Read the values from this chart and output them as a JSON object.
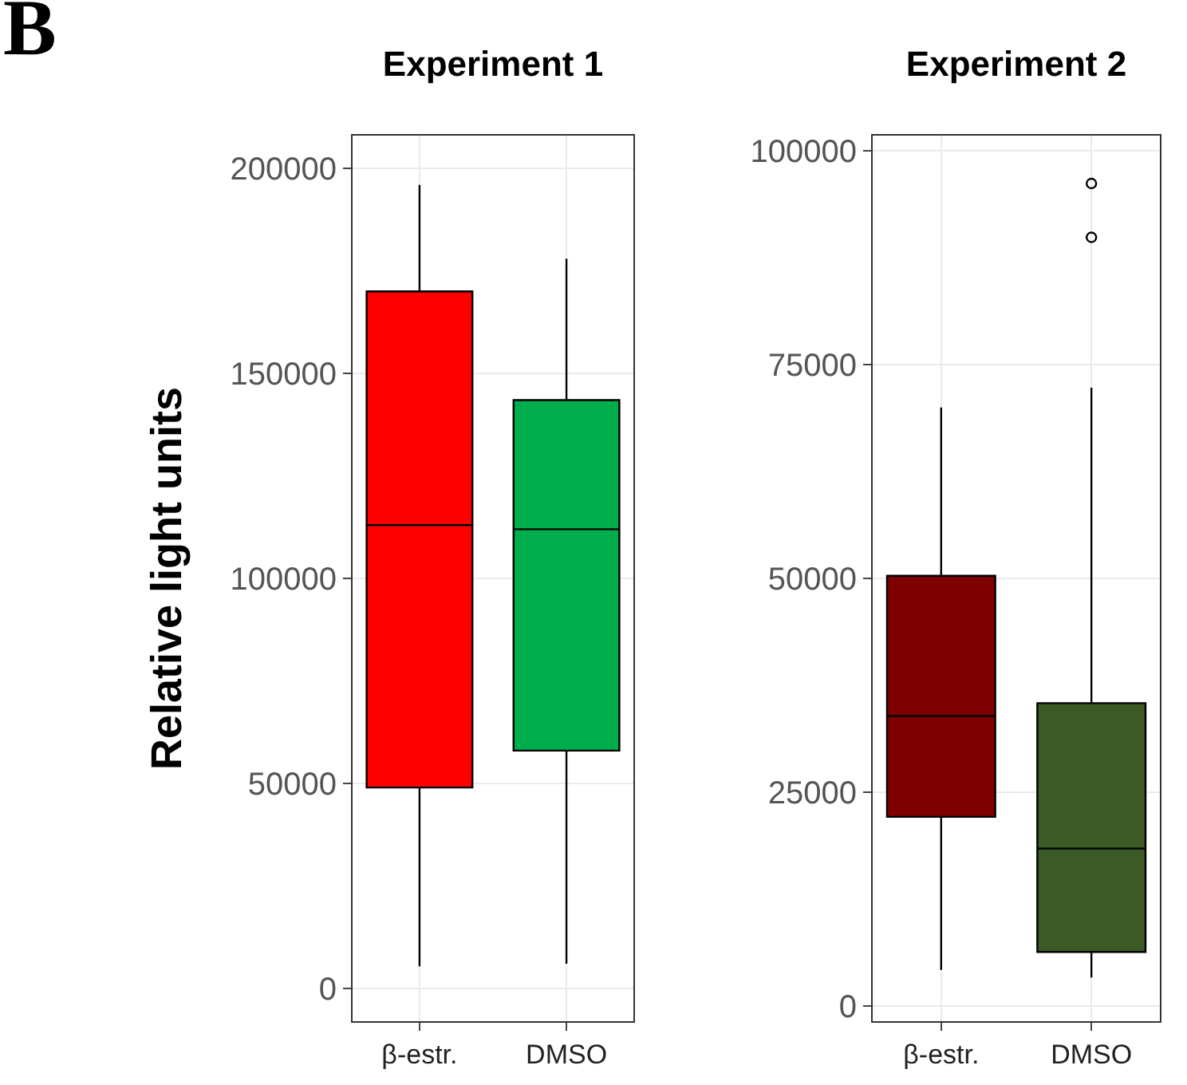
{
  "chart_data": [
    {
      "type": "box",
      "title": "Experiment 1",
      "ylabel": "Relative light units",
      "annotations": [
        "B"
      ],
      "categories": [
        "β-estr.",
        "DMSO"
      ],
      "colors": [
        "#ff0000",
        "#00ad4c"
      ],
      "boxes": [
        {
          "low": 5400,
          "q1": 49000,
          "median": 113000,
          "q3": 170000,
          "high": 196000
        },
        {
          "low": 6000,
          "q1": 58000,
          "median": 112000,
          "q3": 143500,
          "high": 178000
        }
      ],
      "ylim": [
        -8000,
        208000
      ],
      "yticks": [
        0,
        50000,
        100000,
        150000,
        200000
      ],
      "grid": true
    },
    {
      "type": "box",
      "title": "Experiment 2",
      "categories": [
        "β-estr.",
        "DMSO"
      ],
      "colors": [
        "#7f0000",
        "#3b5a25"
      ],
      "boxes": [
        {
          "low": 4200,
          "q1": 22100,
          "median": 33900,
          "q3": 50300,
          "high": 70000
        },
        {
          "low": 3300,
          "q1": 6300,
          "median": 18400,
          "q3": 35400,
          "high": 72300,
          "outliers": [
            89900,
            96200
          ]
        }
      ],
      "ylim": [
        -1800,
        101800
      ],
      "yticks": [
        0,
        25000,
        50000,
        75000,
        100000
      ],
      "grid": true
    }
  ]
}
